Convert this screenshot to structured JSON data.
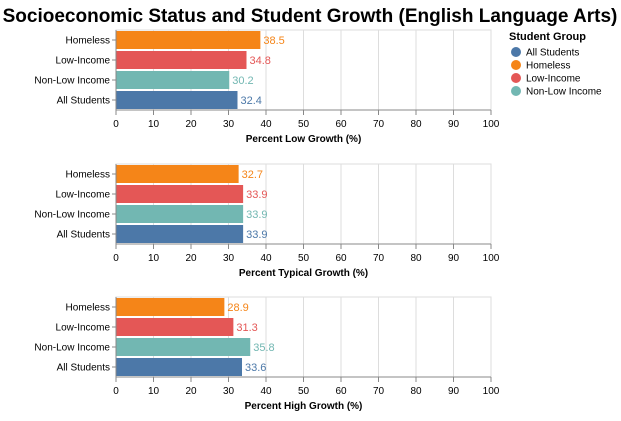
{
  "chart_data": {
    "type": "bar",
    "title": "Socioeconomic Status and Student Growth (English Language Arts)",
    "orientation": "horizontal",
    "xlim": [
      0,
      100
    ],
    "x_ticks": [
      0,
      10,
      20,
      30,
      40,
      50,
      60,
      70,
      80,
      90,
      100
    ],
    "grid": true,
    "legend": {
      "title": "Student Group",
      "placement": "top-right",
      "entries": [
        {
          "label": "All Students",
          "color": "#4c78a8"
        },
        {
          "label": "Homeless",
          "color": "#f58518"
        },
        {
          "label": "Low-Income",
          "color": "#e45756"
        },
        {
          "label": "Non-Low Income",
          "color": "#72b7b2"
        }
      ]
    },
    "categories": [
      "Homeless",
      "Low-Income",
      "Non-Low Income",
      "All Students"
    ],
    "category_colors": {
      "Homeless": "#f58518",
      "Low-Income": "#e45756",
      "Non-Low Income": "#72b7b2",
      "All Students": "#4c78a8"
    },
    "panels": [
      {
        "xlabel": "Percent Low Growth (%)",
        "values": [
          38.5,
          34.8,
          30.2,
          32.4
        ]
      },
      {
        "xlabel": "Percent Typical Growth (%)",
        "values": [
          32.7,
          33.9,
          33.9,
          33.9
        ]
      },
      {
        "xlabel": "Percent High Growth (%)",
        "values": [
          28.9,
          31.3,
          35.8,
          33.6
        ]
      }
    ]
  }
}
